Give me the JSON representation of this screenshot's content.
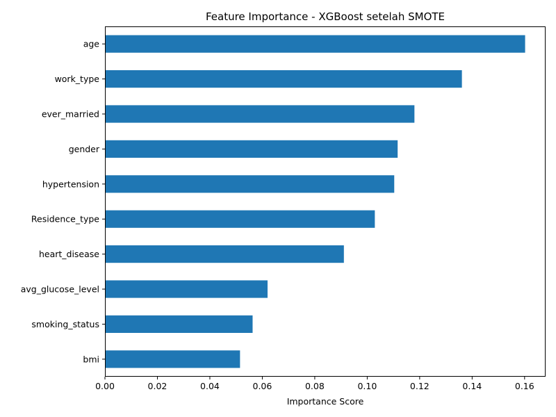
{
  "chart_data": {
    "type": "bar",
    "orientation": "horizontal",
    "title": "Feature Importance - XGBoost setelah SMOTE",
    "xlabel": "Importance Score",
    "ylabel": "",
    "xlim": [
      0,
      0.168
    ],
    "x_ticks": [
      "0.00",
      "0.02",
      "0.04",
      "0.06",
      "0.08",
      "0.10",
      "0.12",
      "0.14",
      "0.16"
    ],
    "categories": [
      "age",
      "work_type",
      "ever_married",
      "gender",
      "hypertension",
      "Residence_type",
      "heart_disease",
      "avg_glucose_level",
      "smoking_status",
      "bmi"
    ],
    "values": [
      0.1602,
      0.1361,
      0.118,
      0.1116,
      0.1103,
      0.1029,
      0.0911,
      0.062,
      0.0563,
      0.0515
    ],
    "bar_color": "#1f77b4",
    "grid": false,
    "legend": "none"
  }
}
